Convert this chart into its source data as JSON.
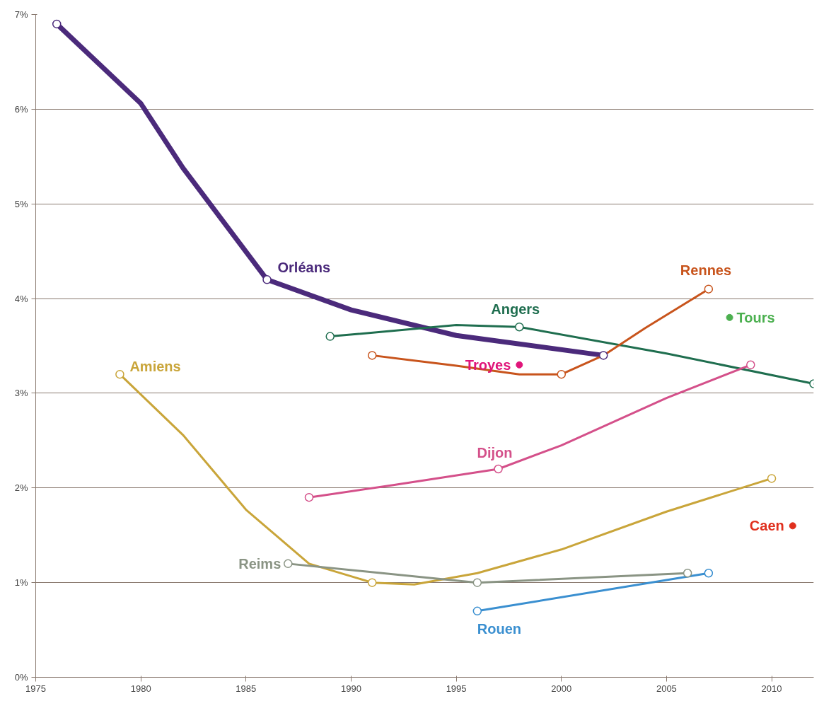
{
  "chart_data": {
    "type": "line",
    "series": [
      {
        "name": "Orléans",
        "color": "#4b2a7b",
        "x": [
          1976,
          1980,
          1982,
          1984,
          1986,
          1990,
          1995,
          2002
        ],
        "values": [
          6.9,
          6.06,
          5.38,
          4.79,
          4.2,
          3.88,
          3.61,
          3.4
        ]
      },
      {
        "name": "Angers",
        "color": "#1f6e4f",
        "x": [
          1989,
          1995,
          1998,
          2005,
          2012
        ],
        "values": [
          3.6,
          3.72,
          3.7,
          3.42,
          3.1
        ]
      },
      {
        "name": "Rennes",
        "color": "#c8541c",
        "x": [
          1991,
          1995,
          1998,
          2000,
          2002,
          2004,
          2007
        ],
        "values": [
          3.4,
          3.29,
          3.2,
          3.2,
          3.4,
          3.69,
          4.1
        ]
      },
      {
        "name": "Tours",
        "color": "#4cb050",
        "type": "scatter",
        "marker": "circle",
        "x": [
          2008
        ],
        "values": [
          3.8
        ]
      },
      {
        "name": "Troyes",
        "color": "#e0157a",
        "type": "scatter",
        "marker": "circle",
        "x": [
          1998
        ],
        "values": [
          3.3
        ]
      },
      {
        "name": "Dijon",
        "color": "#d4508a",
        "x": [
          1988,
          1992,
          1997,
          2000,
          2005,
          2009
        ],
        "values": [
          1.9,
          2.03,
          2.2,
          2.45,
          2.95,
          3.3
        ]
      },
      {
        "name": "Amiens",
        "color": "#c9a53a",
        "x": [
          1979,
          1982,
          1985,
          1988,
          1991,
          1993,
          1996,
          2000,
          2005,
          2010
        ],
        "values": [
          3.2,
          2.56,
          1.77,
          1.2,
          1.0,
          0.98,
          1.1,
          1.35,
          1.75,
          2.1
        ]
      },
      {
        "name": "Reims",
        "color": "#8a9484",
        "x": [
          1987,
          1996,
          2006
        ],
        "values": [
          1.2,
          1.0,
          1.1
        ]
      },
      {
        "name": "Rouen",
        "color": "#3a8fd0",
        "x": [
          1996,
          2007
        ],
        "values": [
          0.7,
          1.1
        ]
      },
      {
        "name": "Caen",
        "color": "#e0301e",
        "type": "scatter",
        "marker": "circle",
        "x": [
          2011
        ],
        "values": [
          1.6
        ]
      },
      {
        "color": "#4b2a7b",
        "type": "scatter",
        "marker": "circle",
        "x": [
          1976,
          1986,
          2002
        ],
        "values": [
          6.9,
          4.2,
          3.4
        ]
      },
      {
        "color": "#1f6e4f",
        "type": "scatter",
        "marker": "circle",
        "x": [
          1989,
          1998,
          2012
        ],
        "values": [
          3.6,
          3.7,
          3.1
        ]
      },
      {
        "color": "#c8541c",
        "type": "scatter",
        "marker": "circle",
        "x": [
          1991,
          2000,
          2007
        ],
        "values": [
          3.4,
          3.2,
          4.1
        ]
      },
      {
        "color": "#d4508a",
        "type": "scatter",
        "marker": "circle",
        "x": [
          1988,
          1997,
          2009
        ],
        "values": [
          1.9,
          2.2,
          3.3
        ]
      },
      {
        "color": "#c9a53a",
        "type": "scatter",
        "marker": "circle",
        "x": [
          1979,
          1991,
          2010
        ],
        "values": [
          3.2,
          1.0,
          2.1
        ]
      },
      {
        "color": "#8a9484",
        "type": "scatter",
        "marker": "circle",
        "x": [
          1987,
          1996,
          2006
        ],
        "values": [
          1.2,
          1.0,
          1.1
        ]
      },
      {
        "color": "#3a8fd0",
        "type": "scatter",
        "marker": "circle",
        "x": [
          1996,
          2007
        ],
        "values": [
          0.7,
          1.1
        ]
      }
    ],
    "xlim": [
      1975,
      2012
    ],
    "xticks": [
      1975,
      1980,
      1985,
      1990,
      1995,
      2000,
      2005,
      2010
    ],
    "ylim": [
      0,
      7
    ],
    "yticks": [
      {
        "value": 0,
        "label": "0%"
      },
      {
        "value": 1,
        "label": "1%"
      },
      {
        "value": 2,
        "label": "2%"
      },
      {
        "value": 3,
        "label": "3%"
      },
      {
        "value": 4,
        "label": "4%"
      },
      {
        "value": 5,
        "label": "5%"
      },
      {
        "value": 6,
        "label": "6%"
      },
      {
        "value": 7,
        "label": "7%"
      }
    ],
    "grid": "y",
    "marker": "none",
    "legend": false
  }
}
